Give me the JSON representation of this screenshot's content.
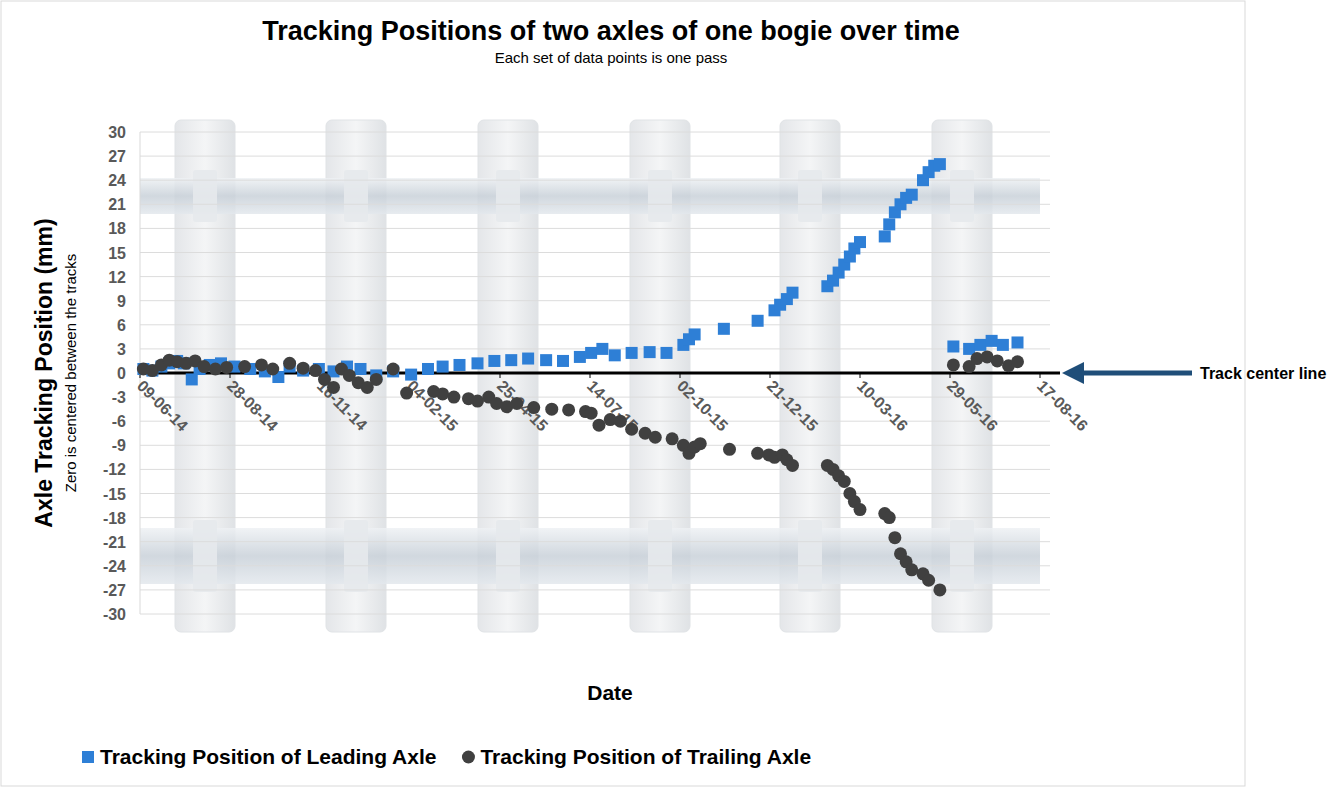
{
  "chart_data": {
    "type": "scatter",
    "title": "Tracking Positions of two axles of one bogie over time",
    "subtitle": "Each set of data points is one pass",
    "x_label": "Date",
    "y_label": "Axle Tracking Position (mm)",
    "y_sublabel": "Zero is centered between the tracks",
    "annotations": [
      {
        "text": "Track center line",
        "y": 0
      }
    ],
    "xlim": [
      "2014-06-09",
      "2016-08-17"
    ],
    "xticks": [
      {
        "value": "2014-06-09",
        "label": "09-06-14"
      },
      {
        "value": "2014-08-28",
        "label": "28-08-14"
      },
      {
        "value": "2014-11-16",
        "label": "16-11-14"
      },
      {
        "value": "2015-02-04",
        "label": "04-02-15"
      },
      {
        "value": "2015-04-25",
        "label": "25-04-15"
      },
      {
        "value": "2015-07-14",
        "label": "14-07-15"
      },
      {
        "value": "2015-10-02",
        "label": "02-10-15"
      },
      {
        "value": "2015-12-21",
        "label": "21-12-15"
      },
      {
        "value": "2016-03-10",
        "label": "10-03-16"
      },
      {
        "value": "2016-05-29",
        "label": "29-05-16"
      },
      {
        "value": "2016-08-17",
        "label": "17-08-16"
      }
    ],
    "ylim": [
      -30,
      30
    ],
    "yticks": [
      -30,
      -27,
      -24,
      -21,
      -18,
      -15,
      -12,
      -9,
      -6,
      -3,
      0,
      3,
      6,
      9,
      12,
      15,
      18,
      21,
      24,
      27,
      30
    ],
    "grid": true,
    "legend": "bottom",
    "series": [
      {
        "name": "Tracking Position of Leading Axle",
        "color": "#2e7fd6",
        "marker": "square",
        "x": [
          "2014-06-12",
          "2014-06-20",
          "2014-06-28",
          "2014-07-05",
          "2014-07-12",
          "2014-07-18",
          "2014-07-25",
          "2014-08-01",
          "2014-08-10",
          "2014-08-20",
          "2014-09-01",
          "2014-09-15",
          "2014-09-28",
          "2014-10-10",
          "2014-10-20",
          "2014-11-01",
          "2014-11-15",
          "2014-11-28",
          "2014-12-10",
          "2014-12-22",
          "2015-01-05",
          "2015-01-20",
          "2015-02-05",
          "2015-02-20",
          "2015-03-05",
          "2015-03-20",
          "2015-04-05",
          "2015-04-20",
          "2015-05-05",
          "2015-05-20",
          "2015-06-05",
          "2015-06-20",
          "2015-07-05",
          "2015-07-15",
          "2015-07-25",
          "2015-08-05",
          "2015-08-20",
          "2015-09-05",
          "2015-09-20",
          "2015-10-05",
          "2015-10-10",
          "2015-10-15",
          "2015-11-10",
          "2015-12-10",
          "2015-12-25",
          "2015-12-30",
          "2016-01-05",
          "2016-01-10",
          "2016-02-10",
          "2016-02-15",
          "2016-02-20",
          "2016-02-25",
          "2016-03-01",
          "2016-03-05",
          "2016-03-10",
          "2016-04-01",
          "2016-04-05",
          "2016-04-10",
          "2016-04-15",
          "2016-04-20",
          "2016-04-25",
          "2016-05-05",
          "2016-05-10",
          "2016-05-15",
          "2016-05-20",
          "2016-06-01",
          "2016-06-15",
          "2016-06-25",
          "2016-07-05",
          "2016-07-15",
          "2016-07-28"
        ],
        "values": [
          0.5,
          0.3,
          0.8,
          1.2,
          1.5,
          1.2,
          -0.8,
          0.5,
          1.0,
          1.2,
          0.8,
          0.5,
          0.2,
          -0.5,
          0.8,
          0.3,
          0.5,
          0.2,
          0.8,
          0.5,
          -0.3,
          0.2,
          -0.2,
          0.5,
          0.8,
          1.0,
          1.2,
          1.5,
          1.6,
          1.8,
          1.6,
          1.5,
          2.0,
          2.5,
          3.0,
          2.2,
          2.5,
          2.6,
          2.5,
          3.5,
          4.2,
          4.8,
          5.5,
          6.5,
          7.8,
          8.5,
          9.2,
          10.0,
          10.8,
          11.5,
          12.5,
          13.5,
          14.5,
          15.5,
          16.3,
          17.0,
          18.5,
          20.0,
          21.0,
          21.8,
          22.2,
          24.0,
          25.0,
          25.8,
          26.0,
          3.3,
          3.0,
          3.5,
          4.0,
          3.5,
          3.8
        ]
      },
      {
        "name": "Tracking Position of Trailing Axle",
        "color": "#404040",
        "marker": "circle",
        "x": [
          "2014-06-12",
          "2014-06-20",
          "2014-06-28",
          "2014-07-05",
          "2014-07-12",
          "2014-07-20",
          "2014-07-28",
          "2014-08-05",
          "2014-08-15",
          "2014-08-25",
          "2014-09-10",
          "2014-09-25",
          "2014-10-05",
          "2014-10-20",
          "2014-11-01",
          "2014-11-12",
          "2014-11-20",
          "2014-11-28",
          "2014-12-05",
          "2014-12-12",
          "2014-12-20",
          "2014-12-28",
          "2015-01-05",
          "2015-01-20",
          "2015-02-01",
          "2015-02-25",
          "2015-03-05",
          "2015-03-15",
          "2015-03-28",
          "2015-04-05",
          "2015-04-15",
          "2015-04-22",
          "2015-05-01",
          "2015-05-10",
          "2015-05-25",
          "2015-06-10",
          "2015-06-25",
          "2015-07-10",
          "2015-07-15",
          "2015-07-22",
          "2015-08-01",
          "2015-08-10",
          "2015-08-20",
          "2015-09-01",
          "2015-09-10",
          "2015-09-25",
          "2015-10-05",
          "2015-10-10",
          "2015-10-15",
          "2015-10-20",
          "2015-11-15",
          "2015-12-10",
          "2015-12-20",
          "2015-12-25",
          "2016-01-01",
          "2016-01-05",
          "2016-01-10",
          "2016-02-10",
          "2016-02-15",
          "2016-02-20",
          "2016-02-25",
          "2016-03-01",
          "2016-03-05",
          "2016-03-10",
          "2016-04-01",
          "2016-04-05",
          "2016-04-10",
          "2016-04-15",
          "2016-04-20",
          "2016-04-25",
          "2016-05-05",
          "2016-05-10",
          "2016-05-20",
          "2016-06-01",
          "2016-06-15",
          "2016-06-22",
          "2016-07-01",
          "2016-07-10",
          "2016-07-20",
          "2016-07-28"
        ],
        "values": [
          0.5,
          0.3,
          1.0,
          1.6,
          1.4,
          1.2,
          1.5,
          0.8,
          0.5,
          0.7,
          0.8,
          1.0,
          0.5,
          1.2,
          0.6,
          0.3,
          -0.8,
          -1.8,
          0.5,
          -0.3,
          -1.2,
          -1.8,
          -0.8,
          0.5,
          -2.5,
          -2.3,
          -2.6,
          -3.0,
          -3.2,
          -3.5,
          -3.0,
          -3.8,
          -4.2,
          -3.8,
          -4.3,
          -4.5,
          -4.6,
          -4.8,
          -5.0,
          -6.5,
          -5.8,
          -6.0,
          -7.0,
          -7.5,
          -8.0,
          -8.2,
          -9.0,
          -10.0,
          -9.2,
          -8.8,
          -9.5,
          -10.0,
          -10.2,
          -10.5,
          -10.2,
          -10.8,
          -11.5,
          -11.5,
          -12.0,
          -12.8,
          -13.5,
          -15.0,
          -16.0,
          -17.0,
          -17.5,
          -18.0,
          -20.5,
          -22.5,
          -23.5,
          -24.5,
          -25.0,
          -25.8,
          -27.0,
          1.0,
          0.8,
          1.8,
          2.0,
          1.5,
          0.9,
          1.4
        ]
      }
    ]
  }
}
